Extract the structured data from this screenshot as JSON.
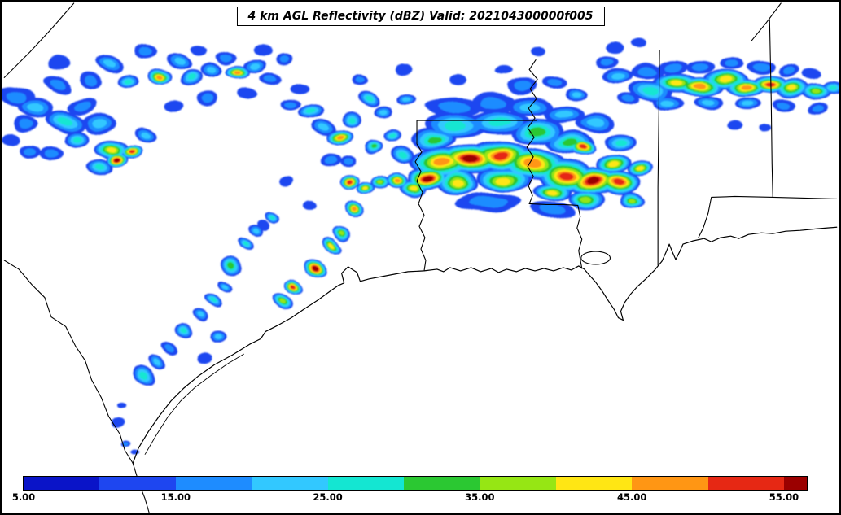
{
  "chart_data": {
    "type": "heatmap",
    "title": "4 km AGL Reflectivity (dBZ) Valid: 202104300000f005",
    "variable": "4 km AGL Reflectivity",
    "units": "dBZ",
    "valid_time": "202104300000f005",
    "colorbar": {
      "orientation": "horizontal",
      "range": [
        5,
        56.5
      ],
      "tick_values": [
        5,
        15,
        25,
        35,
        45,
        55
      ],
      "tick_labels": [
        "5.00",
        "15.00",
        "25.00",
        "35.00",
        "45.00",
        "55.00"
      ],
      "segments": [
        {
          "from": 5,
          "to": 10,
          "color": "#0a14c8"
        },
        {
          "from": 10,
          "to": 15,
          "color": "#1e46f0"
        },
        {
          "from": 15,
          "to": 20,
          "color": "#1e8cff"
        },
        {
          "from": 20,
          "to": 25,
          "color": "#32c8ff"
        },
        {
          "from": 25,
          "to": 30,
          "color": "#14e6d2"
        },
        {
          "from": 30,
          "to": 35,
          "color": "#2bc832"
        },
        {
          "from": 35,
          "to": 40,
          "color": "#96e614"
        },
        {
          "from": 40,
          "to": 45,
          "color": "#ffe614"
        },
        {
          "from": 45,
          "to": 50,
          "color": "#ff9614"
        },
        {
          "from": 50,
          "to": 55,
          "color": "#e62814"
        },
        {
          "from": 55,
          "to": 56.5,
          "color": "#9b0000"
        }
      ]
    },
    "levels": [
      {
        "dbz": 12,
        "color": "#1e46f0"
      },
      {
        "dbz": 19,
        "color": "#1e8cff"
      },
      {
        "dbz": 24,
        "color": "#32c8ff"
      },
      {
        "dbz": 28,
        "color": "#14e6d2"
      },
      {
        "dbz": 33,
        "color": "#2bc832"
      },
      {
        "dbz": 38,
        "color": "#96e614"
      },
      {
        "dbz": 43,
        "color": "#ffe614"
      },
      {
        "dbz": 48,
        "color": "#ff9614"
      },
      {
        "dbz": 52,
        "color": "#e62814"
      },
      {
        "dbz": 56,
        "color": "#9b0000"
      }
    ],
    "cells_format": [
      "x_px",
      "y_px",
      "rx_px",
      "ry_px",
      "rot_deg",
      "peak_dbz"
    ],
    "cells": [
      [
        18,
        118,
        24,
        13,
        15,
        22
      ],
      [
        42,
        132,
        22,
        12,
        0,
        26
      ],
      [
        66,
        103,
        18,
        10,
        25,
        21
      ],
      [
        78,
        148,
        24,
        13,
        10,
        30
      ],
      [
        98,
        128,
        17,
        10,
        -15,
        23
      ],
      [
        92,
        168,
        16,
        10,
        0,
        28
      ],
      [
        118,
        150,
        20,
        12,
        10,
        26
      ],
      [
        134,
        183,
        21,
        13,
        0,
        46
      ],
      [
        141,
        196,
        14,
        9,
        0,
        57
      ],
      [
        159,
        186,
        13,
        8,
        0,
        53
      ],
      [
        121,
        207,
        17,
        10,
        5,
        31
      ],
      [
        176,
        166,
        15,
        9,
        20,
        26
      ],
      [
        62,
        186,
        14,
        9,
        0,
        21
      ],
      [
        36,
        184,
        13,
        8,
        0,
        19
      ],
      [
        30,
        152,
        15,
        9,
        0,
        20
      ],
      [
        108,
        96,
        15,
        9,
        10,
        21
      ],
      [
        132,
        76,
        17,
        10,
        20,
        24
      ],
      [
        156,
        96,
        13,
        8,
        0,
        30
      ],
      [
        177,
        62,
        15,
        9,
        0,
        22
      ],
      [
        194,
        92,
        14,
        9,
        0,
        51
      ],
      [
        217,
        76,
        15,
        9,
        20,
        25
      ],
      [
        232,
        96,
        14,
        9,
        0,
        28
      ],
      [
        257,
        86,
        15,
        9,
        0,
        25
      ],
      [
        277,
        70,
        13,
        8,
        0,
        22
      ],
      [
        292,
        88,
        15,
        9,
        0,
        48
      ],
      [
        312,
        80,
        13,
        8,
        0,
        25
      ],
      [
        333,
        95,
        13,
        8,
        0,
        22
      ],
      [
        347,
        71,
        11,
        7,
        0,
        19
      ],
      [
        252,
        120,
        13,
        8,
        0,
        20
      ],
      [
        303,
        114,
        12,
        7,
        0,
        18
      ],
      [
        70,
        76,
        13,
        8,
        0,
        17
      ],
      [
        212,
        130,
        12,
        7,
        0,
        18
      ],
      [
        243,
        62,
        11,
        7,
        0,
        16
      ],
      [
        322,
        60,
        11,
        7,
        0,
        16
      ],
      [
        12,
        170,
        12,
        8,
        0,
        18
      ],
      [
        357,
        126,
        12,
        7,
        0,
        20
      ],
      [
        381,
        137,
        15,
        10,
        0,
        30
      ],
      [
        397,
        156,
        13,
        9,
        0,
        26
      ],
      [
        416,
        167,
        15,
        10,
        0,
        50
      ],
      [
        432,
        146,
        12,
        8,
        0,
        28
      ],
      [
        452,
        121,
        14,
        9,
        20,
        31
      ],
      [
        472,
        136,
        12,
        8,
        0,
        26
      ],
      [
        457,
        181,
        13,
        9,
        0,
        36
      ],
      [
        482,
        166,
        11,
        8,
        0,
        28
      ],
      [
        502,
        121,
        13,
        8,
        0,
        25
      ],
      [
        368,
        106,
        11,
        7,
        0,
        18
      ],
      [
        442,
        96,
        11,
        7,
        0,
        20
      ],
      [
        404,
        196,
        12,
        8,
        0,
        22
      ],
      [
        425,
        196,
        10,
        7,
        0,
        20
      ],
      [
        523,
        219,
        24,
        15,
        0,
        57
      ],
      [
        543,
        200,
        40,
        20,
        5,
        50
      ],
      [
        577,
        196,
        38,
        19,
        0,
        57
      ],
      [
        616,
        190,
        42,
        19,
        0,
        54
      ],
      [
        656,
        200,
        38,
        19,
        0,
        51
      ],
      [
        696,
        214,
        38,
        19,
        8,
        53
      ],
      [
        731,
        221,
        33,
        17,
        0,
        57
      ],
      [
        763,
        224,
        28,
        15,
        0,
        54
      ],
      [
        506,
        231,
        17,
        11,
        0,
        45
      ],
      [
        562,
        224,
        28,
        14,
        0,
        45
      ],
      [
        621,
        219,
        32,
        15,
        0,
        46
      ],
      [
        681,
        234,
        26,
        13,
        0,
        44
      ],
      [
        722,
        244,
        20,
        11,
        0,
        40
      ],
      [
        756,
        200,
        22,
        12,
        0,
        47
      ],
      [
        716,
        181,
        15,
        10,
        0,
        55
      ],
      [
        777,
        246,
        16,
        10,
        0,
        41
      ],
      [
        790,
        206,
        15,
        10,
        0,
        45
      ],
      [
        533,
        170,
        28,
        13,
        0,
        35
      ],
      [
        562,
        154,
        38,
        16,
        0,
        32
      ],
      [
        612,
        149,
        36,
        15,
        0,
        31
      ],
      [
        661,
        161,
        33,
        15,
        0,
        33
      ],
      [
        702,
        174,
        28,
        14,
        0,
        35
      ],
      [
        557,
        131,
        33,
        13,
        0,
        23
      ],
      [
        606,
        125,
        30,
        12,
        0,
        22
      ],
      [
        651,
        130,
        28,
        12,
        0,
        24
      ],
      [
        692,
        141,
        26,
        11,
        0,
        25
      ],
      [
        732,
        151,
        23,
        11,
        0,
        26
      ],
      [
        763,
        172,
        20,
        11,
        0,
        28
      ],
      [
        643,
        106,
        18,
        9,
        0,
        20
      ],
      [
        684,
        101,
        16,
        8,
        0,
        22
      ],
      [
        709,
        116,
        14,
        8,
        0,
        24
      ],
      [
        497,
        82,
        11,
        7,
        0,
        16
      ],
      [
        562,
        97,
        11,
        7,
        0,
        18
      ],
      [
        617,
        87,
        10,
        6,
        0,
        16
      ],
      [
        772,
        121,
        14,
        8,
        0,
        21
      ],
      [
        757,
        58,
        12,
        7,
        0,
        18
      ],
      [
        788,
        52,
        10,
        6,
        0,
        16
      ],
      [
        662,
        60,
        10,
        6,
        0,
        15
      ],
      [
        600,
        248,
        40,
        12,
        0,
        22
      ],
      [
        680,
        258,
        30,
        10,
        0,
        20
      ],
      [
        495,
        190,
        14,
        10,
        0,
        30
      ],
      [
        802,
        111,
        28,
        13,
        8,
        31
      ],
      [
        833,
        101,
        30,
        13,
        4,
        45
      ],
      [
        862,
        106,
        28,
        12,
        0,
        50
      ],
      [
        892,
        96,
        26,
        12,
        0,
        46
      ],
      [
        917,
        106,
        24,
        11,
        0,
        48
      ],
      [
        947,
        101,
        24,
        11,
        0,
        52
      ],
      [
        976,
        106,
        22,
        11,
        0,
        46
      ],
      [
        1006,
        111,
        18,
        10,
        0,
        41
      ],
      [
        1026,
        106,
        12,
        8,
        0,
        31
      ],
      [
        797,
        86,
        20,
        9,
        0,
        20
      ],
      [
        828,
        81,
        18,
        9,
        0,
        20
      ],
      [
        862,
        81,
        18,
        8,
        0,
        22
      ],
      [
        902,
        76,
        16,
        8,
        0,
        20
      ],
      [
        937,
        81,
        16,
        8,
        0,
        22
      ],
      [
        972,
        86,
        14,
        7,
        0,
        20
      ],
      [
        1002,
        89,
        12,
        7,
        0,
        18
      ],
      [
        822,
        126,
        20,
        9,
        0,
        25
      ],
      [
        872,
        126,
        18,
        9,
        0,
        26
      ],
      [
        922,
        126,
        16,
        8,
        0,
        24
      ],
      [
        967,
        126,
        14,
        8,
        0,
        22
      ],
      [
        1007,
        131,
        12,
        7,
        0,
        20
      ],
      [
        762,
        91,
        18,
        9,
        0,
        25
      ],
      [
        747,
        76,
        14,
        7,
        0,
        20
      ],
      [
        906,
        151,
        9,
        5,
        0,
        15
      ],
      [
        941,
        156,
        7,
        4,
        0,
        15
      ],
      [
        176,
        461,
        15,
        10,
        35,
        30
      ],
      [
        191,
        446,
        11,
        7,
        35,
        25
      ],
      [
        206,
        429,
        11,
        7,
        35,
        22
      ],
      [
        223,
        409,
        12,
        8,
        35,
        28
      ],
      [
        241,
        391,
        11,
        7,
        35,
        25
      ],
      [
        259,
        371,
        12,
        8,
        35,
        30
      ],
      [
        276,
        351,
        11,
        7,
        35,
        25
      ],
      [
        282,
        326,
        13,
        9,
        35,
        36
      ],
      [
        299,
        301,
        11,
        7,
        35,
        28
      ],
      [
        313,
        283,
        10,
        7,
        35,
        25
      ],
      [
        331,
        266,
        11,
        7,
        35,
        30
      ],
      [
        346,
        371,
        14,
        9,
        30,
        41
      ],
      [
        361,
        353,
        13,
        9,
        30,
        55
      ],
      [
        389,
        331,
        15,
        10,
        30,
        57
      ],
      [
        406,
        301,
        12,
        8,
        30,
        45
      ],
      [
        417,
        286,
        11,
        8,
        30,
        40
      ],
      [
        433,
        256,
        13,
        9,
        30,
        50
      ],
      [
        429,
        223,
        12,
        9,
        0,
        52
      ],
      [
        449,
        231,
        11,
        8,
        0,
        45
      ],
      [
        466,
        223,
        11,
        8,
        0,
        40
      ],
      [
        486,
        222,
        13,
        9,
        0,
        50
      ],
      [
        321,
        276,
        9,
        6,
        35,
        18
      ],
      [
        268,
        414,
        11,
        8,
        0,
        25
      ],
      [
        251,
        441,
        9,
        6,
        0,
        18
      ],
      [
        141,
        521,
        7,
        5,
        0,
        18
      ],
      [
        153,
        546,
        6,
        4,
        0,
        20
      ],
      [
        164,
        559,
        5,
        4,
        0,
        15
      ],
      [
        147,
        499,
        5,
        4,
        0,
        15
      ],
      [
        381,
        251,
        9,
        6,
        0,
        18
      ],
      [
        351,
        226,
        9,
        6,
        0,
        17
      ]
    ]
  }
}
